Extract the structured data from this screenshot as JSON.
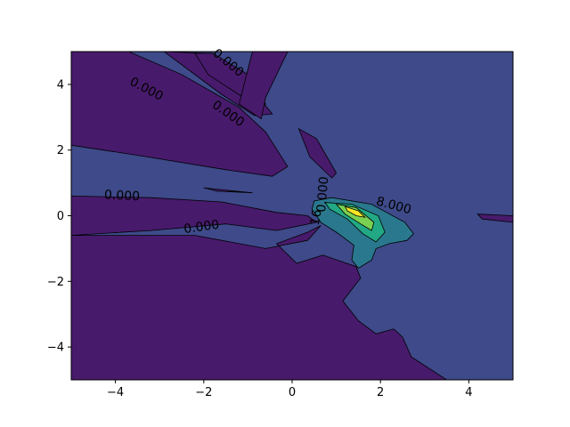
{
  "chart_data": {
    "type": "contour",
    "title": "",
    "xlabel": "",
    "ylabel": "",
    "xlim": [
      -5,
      5
    ],
    "ylim": [
      -5,
      5
    ],
    "x_ticks": [
      -4,
      -2,
      0,
      2,
      4
    ],
    "y_ticks": [
      -4,
      -2,
      0,
      2,
      4
    ],
    "x_tick_labels": [
      "−4",
      "−2",
      "0",
      "2",
      "4"
    ],
    "y_tick_labels": [
      "−4",
      "−2",
      "0",
      "2",
      "4"
    ],
    "grid": false,
    "legend": "none",
    "colormap": "viridis",
    "colors": {
      "lowest_fill": "#481a6c",
      "background_fill": "#3e4a89",
      "level_2_fill": "#2a788e",
      "level_3_fill": "#22a884",
      "level_4_fill": "#7ad151",
      "peak_fill": "#fde725",
      "line": "#000000"
    },
    "contour_labels": [
      {
        "text": "0.000",
        "x": -3.3,
        "y": 3.85,
        "angle": 28
      },
      {
        "text": "0.000",
        "x": -1.45,
        "y": 3.1,
        "angle": 35
      },
      {
        "text": "0.000",
        "x": -1.45,
        "y": 4.65,
        "angle": 40
      },
      {
        "text": "0.000",
        "x": -3.85,
        "y": 0.6,
        "angle": 3
      },
      {
        "text": "0.000",
        "x": -2.05,
        "y": -0.35,
        "angle": -8
      },
      {
        "text": "8.000",
        "x": 2.3,
        "y": 0.3,
        "angle": 15
      },
      {
        "text": "0.000",
        "x": 0.7,
        "y": 0.65,
        "angle": -85
      },
      {
        "text": "16",
        "x": 0.55,
        "y": -0.05,
        "angle": -80
      }
    ]
  }
}
